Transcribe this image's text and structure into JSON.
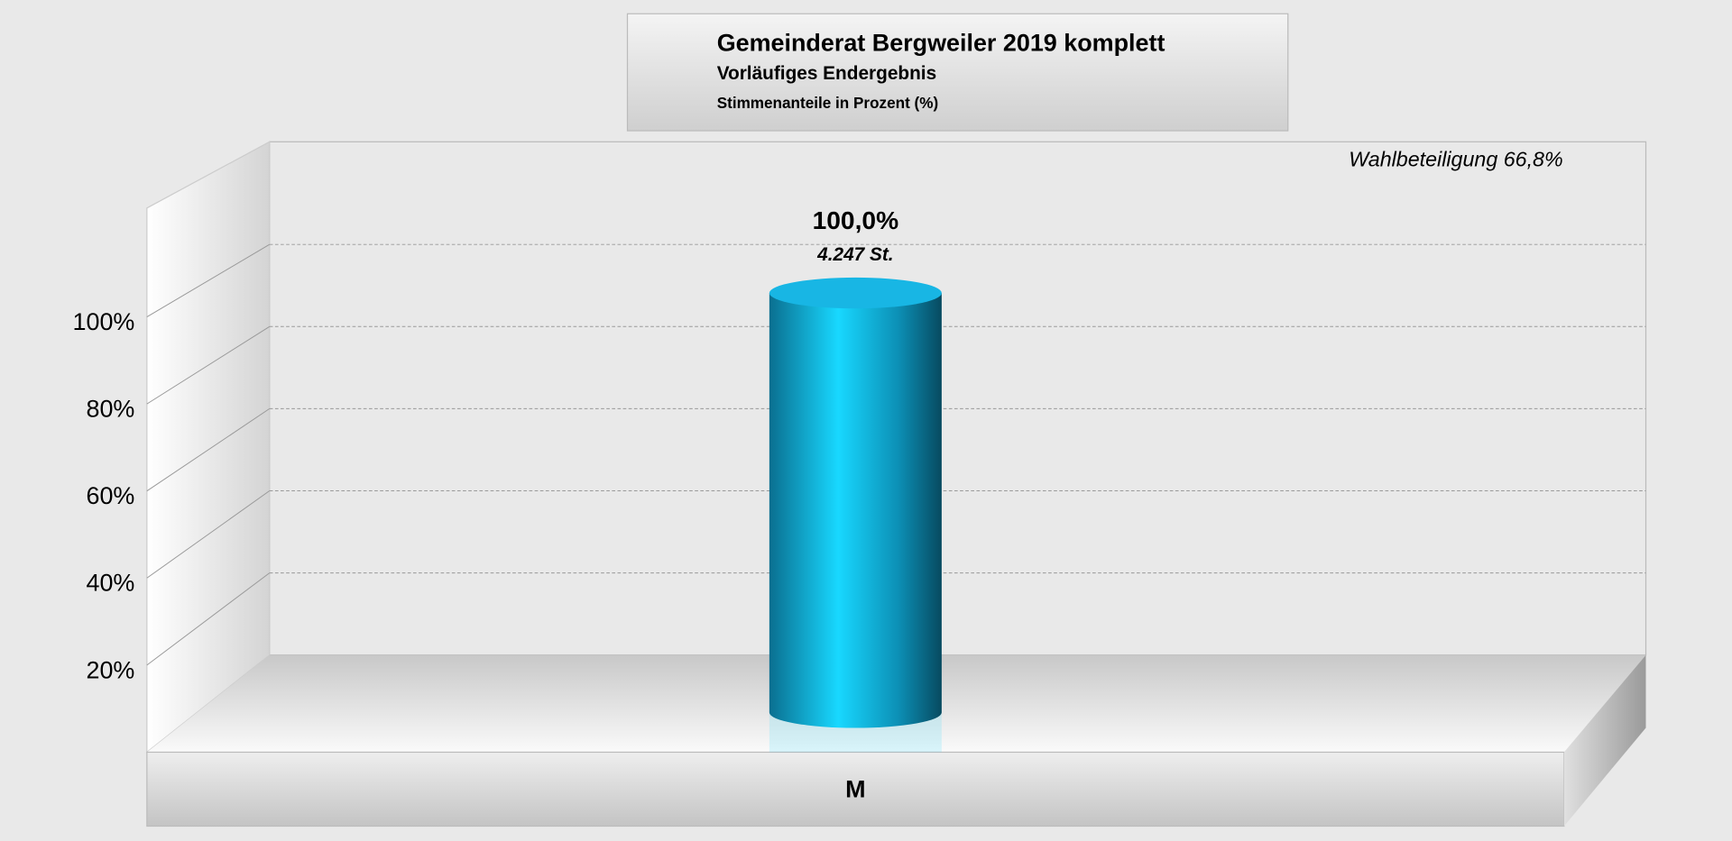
{
  "chart_data": {
    "type": "bar3d",
    "title": "Gemeinderat Bergweiler 2019 komplett",
    "subtitle": "Vorläufiges Endergebnis",
    "y_label": "Stimmenanteile in Prozent (%)",
    "annotation": "Wahlbeteiligung 66,8%",
    "categories": [
      "M"
    ],
    "values": [
      100
    ],
    "value_labels": [
      "100,0%"
    ],
    "sub_labels": [
      "4.247 St."
    ],
    "color": "#18d8ff",
    "ylim": [
      0,
      125
    ],
    "yticks": [
      {
        "value": 20,
        "label": "20%"
      },
      {
        "value": 40,
        "label": "40%"
      },
      {
        "value": 60,
        "label": "60%"
      },
      {
        "value": 80,
        "label": "80%"
      },
      {
        "value": 100,
        "label": "100%"
      }
    ],
    "grid": true
  }
}
